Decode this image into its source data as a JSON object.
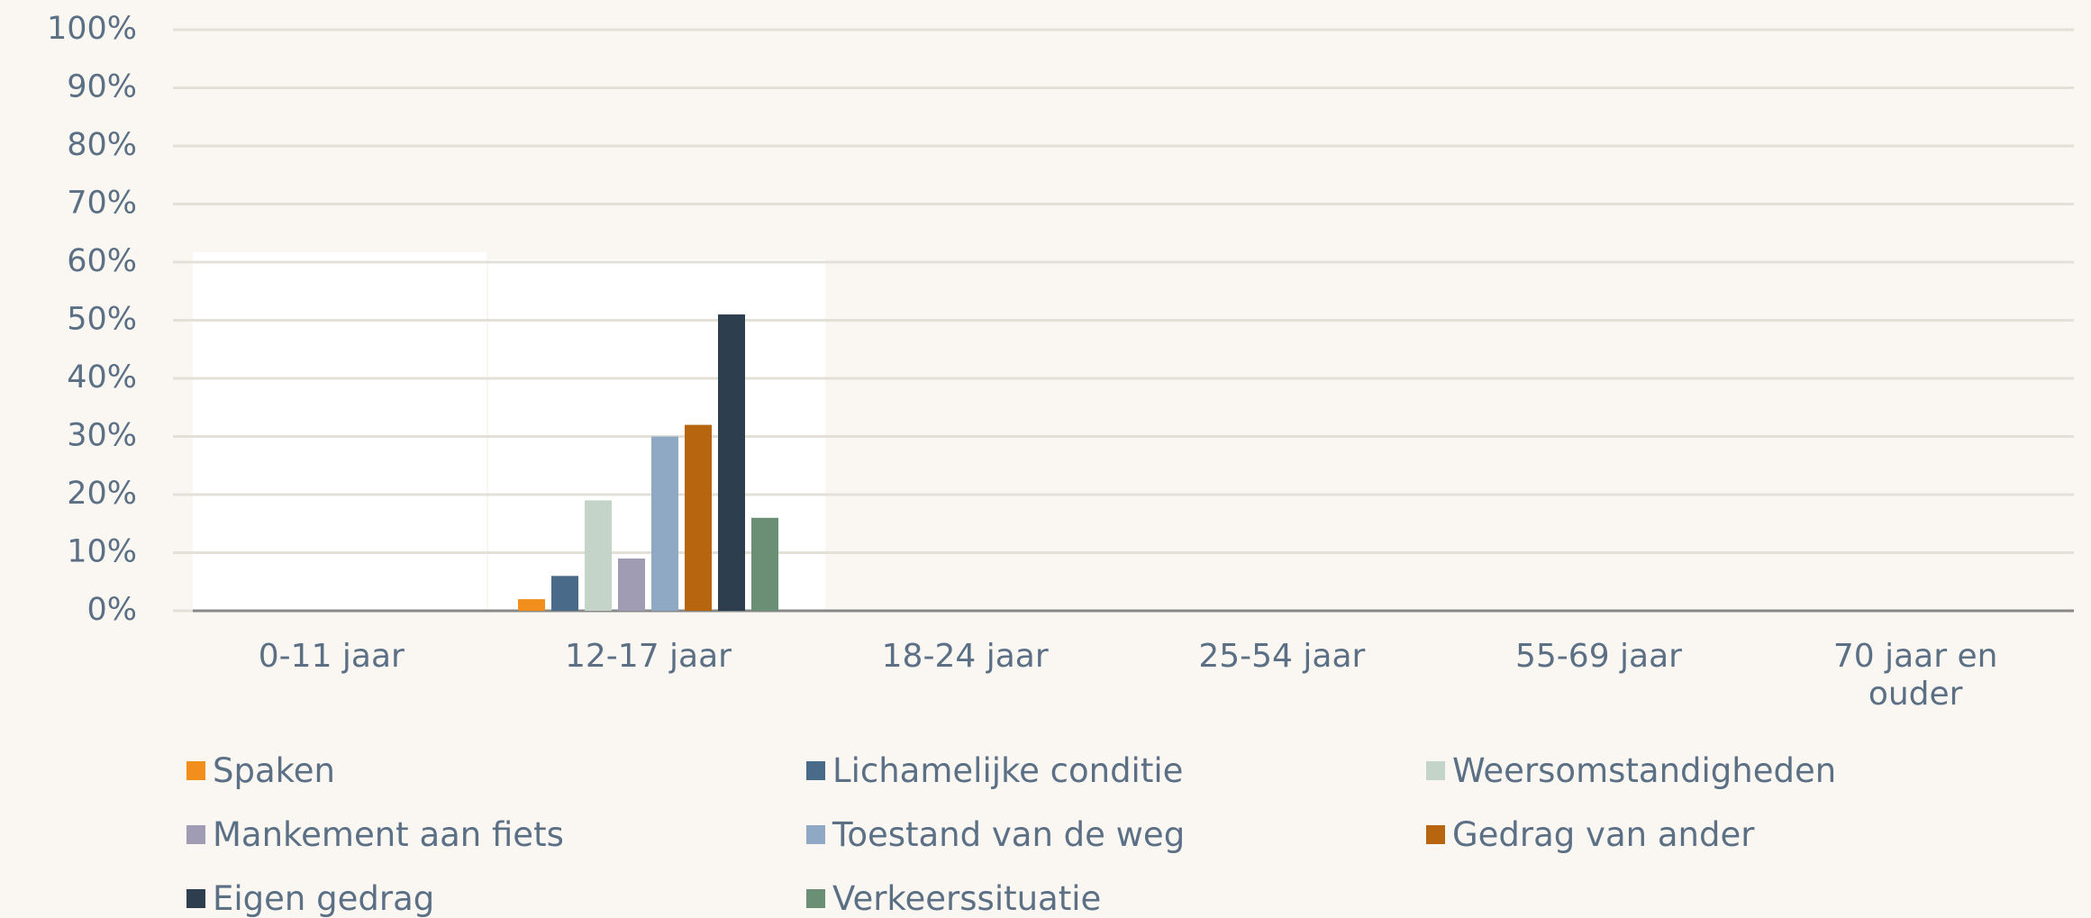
{
  "chart_data": {
    "type": "bar",
    "categories": [
      "0-11 jaar",
      "12-17 jaar",
      "18-24 jaar",
      "25-54 jaar",
      "55-69 jaar",
      "70 jaar en ouder"
    ],
    "series": [
      {
        "name": "Spaken",
        "color": "#f28e1c",
        "values": [
          null,
          2,
          null,
          null,
          null,
          null
        ]
      },
      {
        "name": "Lichamelijke conditie",
        "color": "#4a6a8a",
        "values": [
          null,
          6,
          null,
          null,
          null,
          null
        ]
      },
      {
        "name": "Weersomstandigheden",
        "color": "#c4d4c8",
        "values": [
          null,
          19,
          null,
          null,
          null,
          null
        ]
      },
      {
        "name": "Mankement aan fiets",
        "color": "#a09cb4",
        "values": [
          null,
          9,
          null,
          null,
          null,
          null
        ]
      },
      {
        "name": "Toestand van de weg",
        "color": "#8fa8c4",
        "values": [
          null,
          30,
          null,
          null,
          null,
          null
        ]
      },
      {
        "name": "Gedrag van ander",
        "color": "#b8650f",
        "values": [
          null,
          32,
          null,
          null,
          null,
          null
        ]
      },
      {
        "name": "Eigen gedrag",
        "color": "#2d3e4e",
        "values": [
          null,
          51,
          null,
          null,
          null,
          null
        ]
      },
      {
        "name": "Verkeerssituatie",
        "color": "#6a8f74",
        "values": [
          null,
          16,
          null,
          null,
          null,
          null
        ]
      }
    ],
    "ylim": [
      0,
      100
    ],
    "yticks": [
      {
        "value": 0,
        "label": "0%"
      },
      {
        "value": 10,
        "label": "10%"
      },
      {
        "value": 20,
        "label": "20%"
      },
      {
        "value": 30,
        "label": "30%"
      },
      {
        "value": 40,
        "label": "40%"
      },
      {
        "value": 50,
        "label": "50%"
      },
      {
        "value": 60,
        "label": "60%"
      },
      {
        "value": 70,
        "label": "70%"
      },
      {
        "value": 80,
        "label": "80%"
      },
      {
        "value": 90,
        "label": "90%"
      },
      {
        "value": 100,
        "label": "100%"
      }
    ],
    "grid": true,
    "legend": "bottom"
  }
}
